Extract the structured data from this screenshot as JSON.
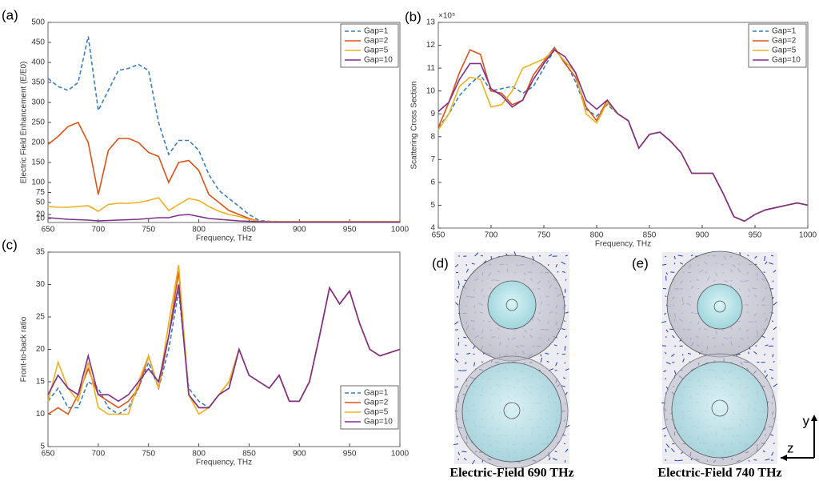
{
  "chart_data": [
    {
      "type": "line",
      "panel": "(a)",
      "ylabel": "Electric Field Enhancement (E/E0)",
      "xlabel": "Frequency, THz",
      "x": [
        650,
        660,
        670,
        680,
        690,
        700,
        710,
        720,
        730,
        740,
        750,
        760,
        770,
        780,
        790,
        800,
        810,
        820,
        830,
        840,
        850,
        860,
        870,
        880,
        890,
        900,
        910,
        920,
        930,
        940,
        950,
        960,
        970,
        980,
        990,
        1000
      ],
      "xlim": [
        650,
        1000
      ],
      "xticks": [
        650,
        700,
        750,
        800,
        850,
        900,
        950,
        1000
      ],
      "ylim": [
        0,
        500
      ],
      "yticks": [
        10,
        20,
        50,
        75,
        100,
        150,
        200,
        250,
        300,
        350,
        400,
        450,
        500
      ],
      "legend": "upper right",
      "series": [
        {
          "name": "Gap=1",
          "color": "#3a7ebf",
          "dashed": true,
          "values": [
            360,
            340,
            330,
            350,
            465,
            280,
            330,
            380,
            385,
            395,
            380,
            250,
            170,
            205,
            205,
            180,
            120,
            80,
            60,
            40,
            20,
            5,
            3,
            2,
            2,
            2,
            2,
            2,
            2,
            2,
            2,
            2,
            2,
            2,
            2,
            2
          ]
        },
        {
          "name": "Gap=2",
          "color": "#d95319",
          "values": [
            195,
            215,
            240,
            250,
            200,
            70,
            180,
            210,
            210,
            200,
            175,
            165,
            100,
            150,
            155,
            130,
            70,
            50,
            30,
            20,
            10,
            3,
            2,
            2,
            2,
            2,
            2,
            2,
            2,
            2,
            2,
            2,
            2,
            2,
            2,
            2
          ]
        },
        {
          "name": "Gap=5",
          "color": "#edb120",
          "values": [
            40,
            38,
            38,
            40,
            42,
            28,
            45,
            48,
            48,
            50,
            55,
            62,
            30,
            45,
            60,
            55,
            40,
            28,
            20,
            15,
            8,
            3,
            2,
            2,
            2,
            2,
            2,
            2,
            2,
            2,
            2,
            2,
            2,
            2,
            2,
            2
          ]
        },
        {
          "name": "Gap=10",
          "color": "#7e2f8e",
          "values": [
            12,
            10,
            8,
            7,
            6,
            4,
            5,
            6,
            7,
            8,
            10,
            12,
            12,
            18,
            20,
            15,
            10,
            8,
            6,
            4,
            3,
            2,
            1,
            1,
            1,
            1,
            1,
            1,
            1,
            1,
            1,
            1,
            1,
            1,
            1,
            1
          ]
        }
      ]
    },
    {
      "type": "line",
      "panel": "(b)",
      "ylabel": "Scattering Cross Section",
      "xlabel": "Frequency, THz",
      "y_multiplier": "×10⁵",
      "x": [
        650,
        660,
        670,
        680,
        690,
        700,
        710,
        720,
        730,
        740,
        750,
        760,
        770,
        780,
        790,
        800,
        810,
        820,
        830,
        840,
        850,
        860,
        870,
        880,
        890,
        900,
        910,
        920,
        930,
        940,
        950,
        960,
        970,
        980,
        990,
        1000
      ],
      "xlim": [
        650,
        1000
      ],
      "xticks": [
        650,
        700,
        750,
        800,
        850,
        900,
        950,
        1000
      ],
      "ylim": [
        4,
        13
      ],
      "yticks": [
        4,
        5,
        6,
        7,
        8,
        9,
        10,
        11,
        12,
        13
      ],
      "legend": "upper right",
      "series": [
        {
          "name": "Gap=1",
          "color": "#3a7ebf",
          "dashed": true,
          "values": [
            8.4,
            9.0,
            9.8,
            10.3,
            10.7,
            10.0,
            10.1,
            10.2,
            9.9,
            10.2,
            11.0,
            11.8,
            11.3,
            10.4,
            9.2,
            8.9,
            9.4,
            9.0,
            8.7,
            7.5,
            8.1,
            8.2,
            7.8,
            7.3,
            6.4,
            6.4,
            6.4,
            5.5,
            4.5,
            4.3,
            4.6,
            4.8,
            4.9,
            5.0,
            5.1,
            5.0
          ]
        },
        {
          "name": "Gap=2",
          "color": "#d95319",
          "values": [
            8.4,
            9.5,
            10.8,
            11.8,
            11.6,
            10.0,
            9.9,
            9.4,
            9.6,
            10.7,
            11.3,
            11.9,
            11.2,
            10.6,
            9.3,
            8.7,
            9.6,
            9.0,
            8.7,
            7.5,
            8.1,
            8.2,
            7.8,
            7.3,
            6.4,
            6.4,
            6.4,
            5.5,
            4.5,
            4.3,
            4.6,
            4.8,
            4.9,
            5.0,
            5.1,
            5.0
          ]
        },
        {
          "name": "Gap=5",
          "color": "#edb120",
          "values": [
            8.3,
            9.0,
            10.2,
            10.6,
            10.5,
            9.3,
            9.4,
            10.0,
            11.0,
            11.2,
            11.4,
            11.8,
            11.3,
            10.8,
            9.0,
            8.6,
            9.5,
            9.0,
            8.7,
            7.5,
            8.1,
            8.2,
            7.8,
            7.3,
            6.4,
            6.4,
            6.4,
            5.5,
            4.5,
            4.3,
            4.6,
            4.8,
            4.9,
            5.0,
            5.1,
            5.0
          ]
        },
        {
          "name": "Gap=10",
          "color": "#7e2f8e",
          "values": [
            9.1,
            9.5,
            10.5,
            11.2,
            11.2,
            10.1,
            9.8,
            9.3,
            9.6,
            10.5,
            11.2,
            11.8,
            11.5,
            10.8,
            9.6,
            9.2,
            9.6,
            9.0,
            8.7,
            7.5,
            8.1,
            8.2,
            7.8,
            7.3,
            6.4,
            6.4,
            6.4,
            5.5,
            4.5,
            4.3,
            4.6,
            4.8,
            4.9,
            5.0,
            5.1,
            5.0
          ]
        }
      ]
    },
    {
      "type": "line",
      "panel": "(c)",
      "ylabel": "Front-to-back ratio",
      "xlabel": "Frequency, THz",
      "x": [
        650,
        660,
        670,
        680,
        690,
        700,
        710,
        720,
        730,
        740,
        750,
        760,
        770,
        780,
        790,
        800,
        810,
        820,
        830,
        840,
        850,
        860,
        870,
        880,
        890,
        900,
        910,
        920,
        930,
        940,
        950,
        960,
        970,
        980,
        990,
        1000
      ],
      "xlim": [
        650,
        1000
      ],
      "xticks": [
        650,
        700,
        750,
        800,
        850,
        900,
        950,
        1000
      ],
      "ylim": [
        5,
        35
      ],
      "yticks": [
        5,
        10,
        15,
        20,
        25,
        30,
        35
      ],
      "legend": "lower right",
      "series": [
        {
          "name": "Gap=1",
          "color": "#3a7ebf",
          "dashed": true,
          "values": [
            12,
            14,
            11,
            11,
            15,
            14,
            11,
            10,
            11,
            14,
            18,
            14,
            20,
            29,
            14,
            12,
            11,
            13,
            14,
            20,
            16,
            15,
            14,
            16,
            12,
            12,
            15,
            22,
            29.5,
            27,
            29,
            24,
            20,
            19,
            19.5,
            20
          ]
        },
        {
          "name": "Gap=2",
          "color": "#d95319",
          "values": [
            10,
            11,
            10,
            13,
            17,
            13,
            12,
            11,
            12,
            14,
            19,
            14,
            22,
            32,
            13,
            11,
            11,
            13,
            15,
            20,
            16,
            15,
            14,
            16,
            12,
            12,
            15,
            22,
            29.5,
            27,
            29,
            24,
            20,
            19,
            19.5,
            20
          ]
        },
        {
          "name": "Gap=5",
          "color": "#edb120",
          "values": [
            12,
            18,
            14,
            12,
            18,
            11,
            10,
            10,
            10,
            15,
            19,
            14,
            24,
            33,
            13,
            10,
            11,
            13,
            15,
            20,
            16,
            15,
            14,
            16,
            12,
            12,
            15,
            22,
            29.5,
            27,
            29,
            24,
            20,
            19,
            19.5,
            20
          ]
        },
        {
          "name": "Gap=10",
          "color": "#7e2f8e",
          "values": [
            13,
            16,
            14,
            13,
            19,
            13,
            13,
            12,
            13,
            15,
            17,
            15,
            22,
            30,
            13,
            11,
            11,
            13,
            14,
            20,
            16,
            15,
            14,
            16,
            12,
            12,
            15,
            22,
            29.5,
            27,
            29,
            24,
            20,
            19,
            19.5,
            20
          ]
        }
      ]
    }
  ],
  "field_maps": [
    {
      "panel": "(d)",
      "caption": "Electric-Field 690 THz"
    },
    {
      "panel": "(e)",
      "caption": "Electric-Field 740 THz"
    }
  ],
  "axes_icon": {
    "y": "y",
    "z": "z"
  }
}
